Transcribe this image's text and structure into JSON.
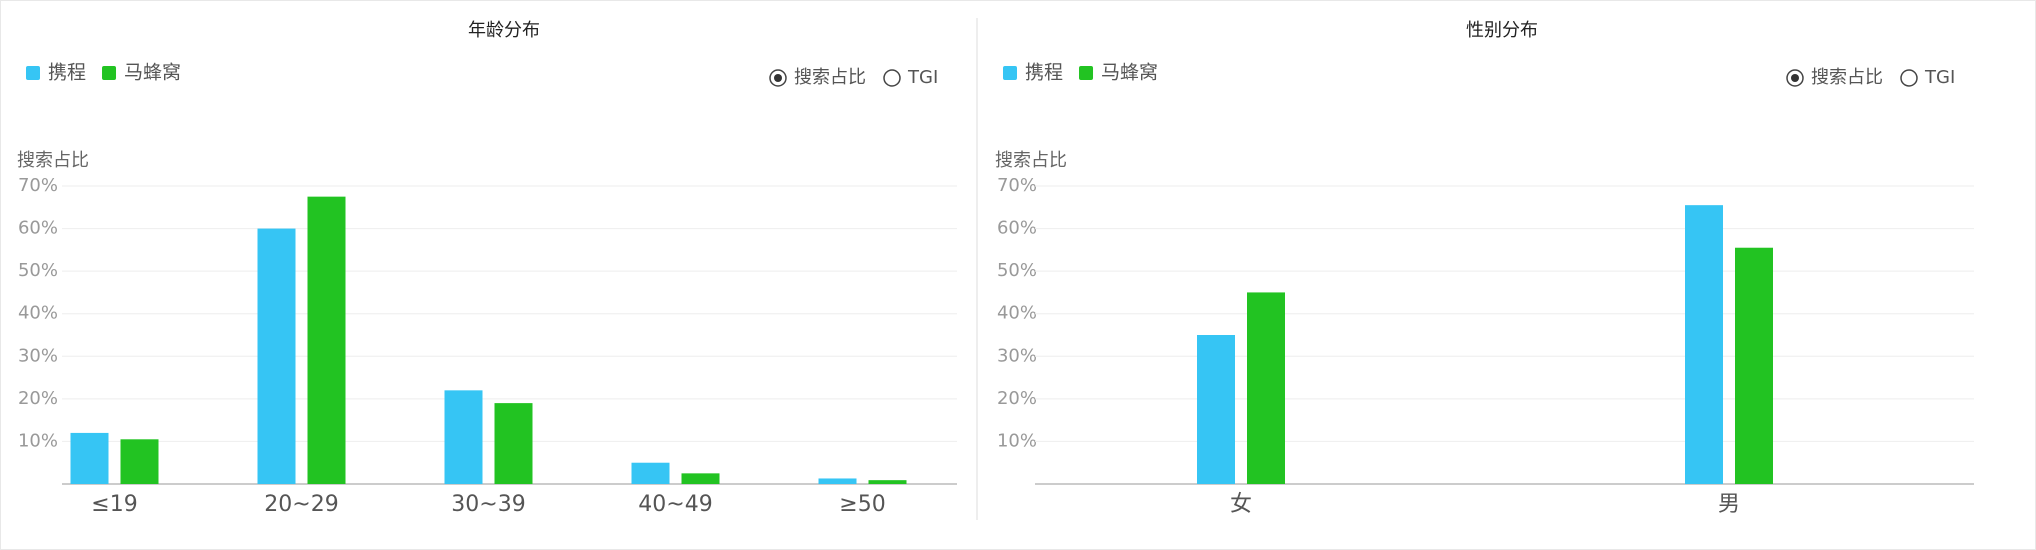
{
  "chart_data": [
    {
      "type": "bar",
      "title": "年龄分布",
      "y_label": "搜索占比",
      "options": [
        "搜索占比",
        "TGI"
      ],
      "selected_option": 0,
      "categories": [
        "≤19",
        "20~29",
        "30~39",
        "40~49",
        "≥50"
      ],
      "series": [
        {
          "name": "携程",
          "color": "#36c5f4",
          "values": [
            12,
            60,
            22,
            5,
            1.3
          ]
        },
        {
          "name": "马蜂窝",
          "color": "#22c322",
          "values": [
            10.5,
            67.5,
            19,
            2.5,
            0.9
          ]
        }
      ],
      "ylim": [
        0,
        70
      ],
      "yticks": [
        {
          "value": 10,
          "label": "10%"
        },
        {
          "value": 20,
          "label": "20%"
        },
        {
          "value": 30,
          "label": "30%"
        },
        {
          "value": 40,
          "label": "40%"
        },
        {
          "value": 50,
          "label": "50%"
        },
        {
          "value": 60,
          "label": "60%"
        },
        {
          "value": 70,
          "label": "70%"
        }
      ],
      "grid": true
    },
    {
      "type": "bar",
      "title": "性别分布",
      "y_label": "搜索占比",
      "options": [
        "搜索占比",
        "TGI"
      ],
      "selected_option": 0,
      "categories": [
        "女",
        "男"
      ],
      "series": [
        {
          "name": "携程",
          "color": "#36c5f4",
          "values": [
            35,
            65.5
          ]
        },
        {
          "name": "马蜂窝",
          "color": "#22c322",
          "values": [
            45,
            55.5
          ]
        }
      ],
      "ylim": [
        0,
        70
      ],
      "yticks": [
        {
          "value": 10,
          "label": "10%"
        },
        {
          "value": 20,
          "label": "20%"
        },
        {
          "value": 30,
          "label": "30%"
        },
        {
          "value": 40,
          "label": "40%"
        },
        {
          "value": 50,
          "label": "50%"
        },
        {
          "value": 60,
          "label": "60%"
        },
        {
          "value": 70,
          "label": "70%"
        }
      ],
      "grid": true
    }
  ]
}
